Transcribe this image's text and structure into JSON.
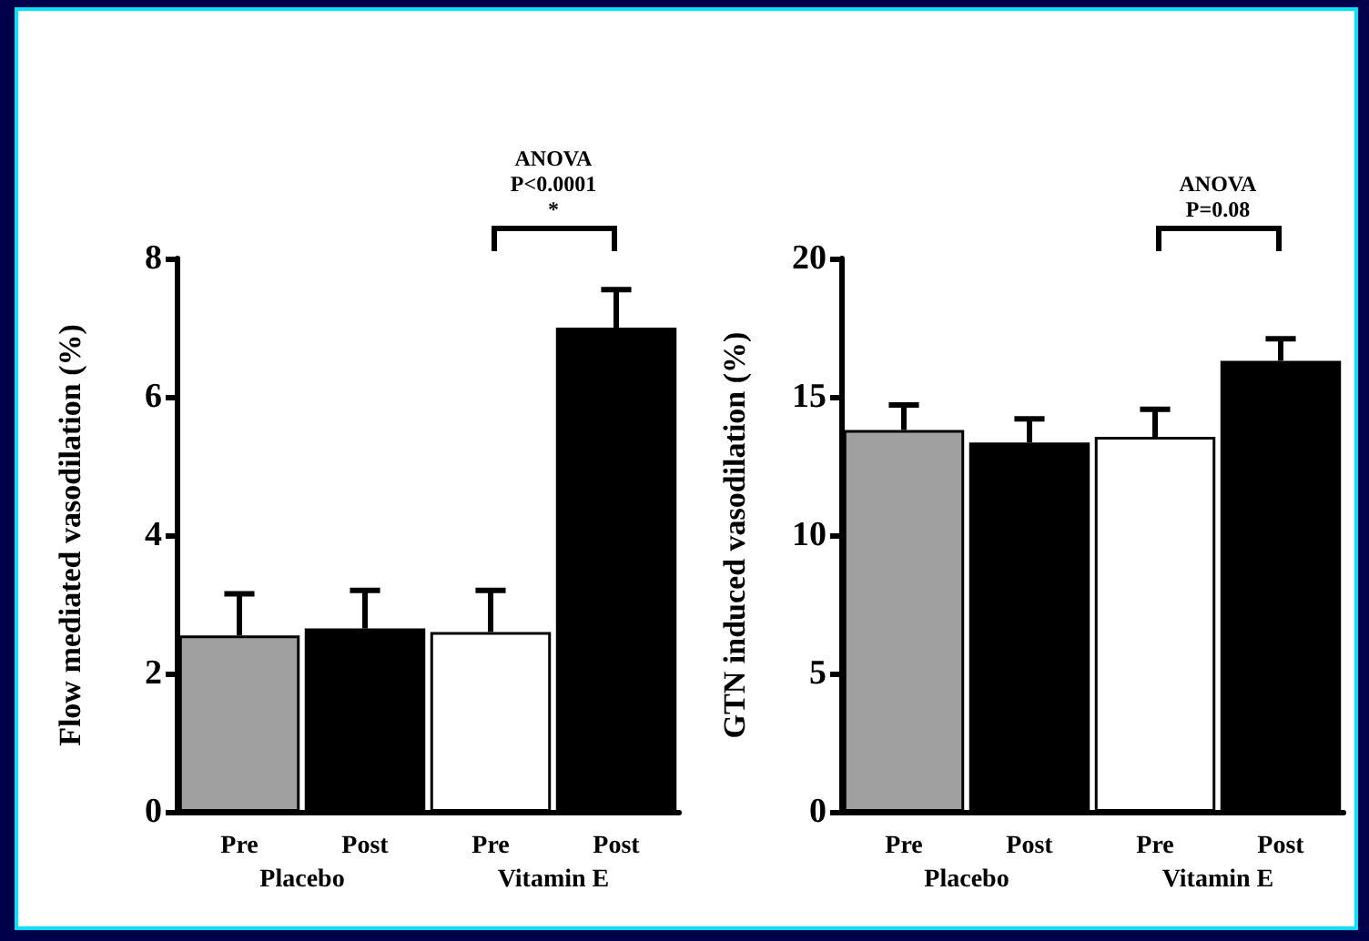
{
  "chart_data": [
    {
      "type": "bar",
      "ylabel": "Flow mediated vasodilation (%)",
      "categories": [
        "Pre",
        "Post",
        "Pre",
        "Post"
      ],
      "values": [
        2.55,
        2.65,
        2.6,
        7.0
      ],
      "colors": [
        "#a0a0a0",
        "#000000",
        "#ffffff",
        "#000000"
      ],
      "errors": [
        [
          2.55,
          3.15
        ],
        [
          2.65,
          3.2
        ],
        [
          2.6,
          3.2
        ],
        [
          7.0,
          7.55
        ]
      ],
      "ylim": [
        0,
        8
      ],
      "yticks": [
        0,
        2,
        4,
        6,
        8
      ],
      "annotations": [
        "Placebo",
        "Vitamin E",
        "ANOVA\nP<0.0001",
        "*"
      ]
    },
    {
      "type": "bar",
      "ylabel": "GTN induced vasodilation (%)",
      "categories": [
        "Pre",
        "Post",
        "Pre",
        "Post"
      ],
      "values": [
        13.8,
        13.35,
        13.55,
        16.3
      ],
      "colors": [
        "#a0a0a0",
        "#000000",
        "#ffffff",
        "#000000"
      ],
      "errors": [
        [
          13.8,
          14.7
        ],
        [
          13.35,
          14.2
        ],
        [
          13.55,
          14.55
        ],
        [
          16.3,
          17.1
        ]
      ],
      "ylim": [
        0,
        20
      ],
      "yticks": [
        0,
        5,
        10,
        15,
        20
      ],
      "annotations": [
        "Placebo",
        "Vitamin E",
        "ANOVA\nP=0.08"
      ]
    }
  ]
}
